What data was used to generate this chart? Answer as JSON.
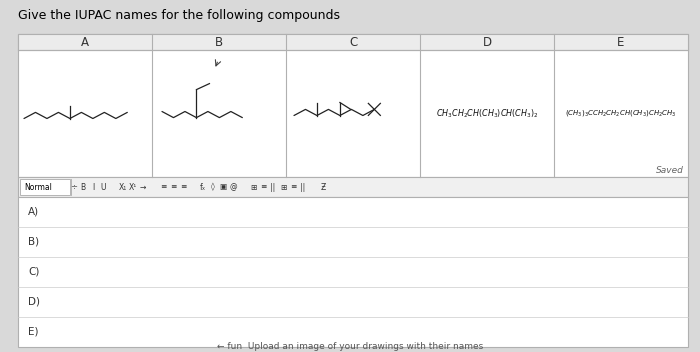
{
  "title": "Give the IUPAC names for the following compounds",
  "title_fontsize": 9,
  "bg_color": "#d9d9d9",
  "col_headers": [
    "A",
    "B",
    "C",
    "D",
    "E"
  ],
  "answer_labels": [
    "A)",
    "B)",
    "C)",
    "D)",
    "E)"
  ],
  "compound_D": "CH₃CH₂CH(CH₃)CH(CH₃)₂",
  "compound_E": "(CH₃)₃CCH₂CH₂CH(CH₃)CH₂CH₃",
  "saved_text": "Saved",
  "bottom_text": "← fun  Upload an image of your drawings with their names"
}
